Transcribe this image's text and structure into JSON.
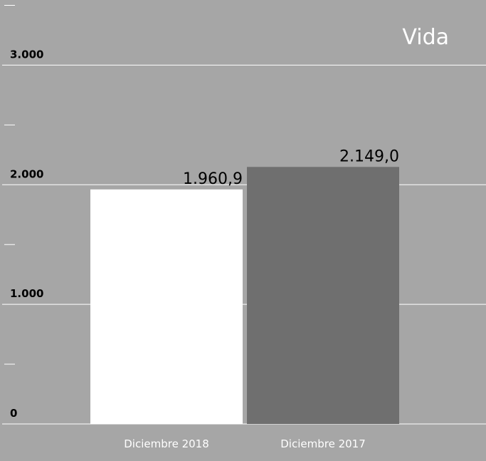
{
  "chart_data": {
    "type": "bar",
    "title": "Vida",
    "categories": [
      "Diciembre 2018",
      "Diciembre 2017"
    ],
    "values": [
      1960.9,
      2149.0
    ],
    "value_labels": [
      "1.960,9",
      "2.149,0"
    ],
    "ylim": [
      0,
      3500
    ],
    "yticks": [
      0,
      1000,
      2000,
      3000
    ],
    "ytick_labels": [
      "0",
      "1.000",
      "2.000",
      "3.000"
    ],
    "minor_ticks": [
      500,
      1500,
      2500,
      3500
    ],
    "grid": true,
    "colors": {
      "background": "#a6a6a6",
      "gridline": "#ffffff",
      "bars": [
        "#ffffff",
        "#6f6f6f"
      ],
      "tick_text": "#000000",
      "value_text": "#000000",
      "title_text": "#ffffff",
      "category_text": "#ffffff"
    }
  }
}
